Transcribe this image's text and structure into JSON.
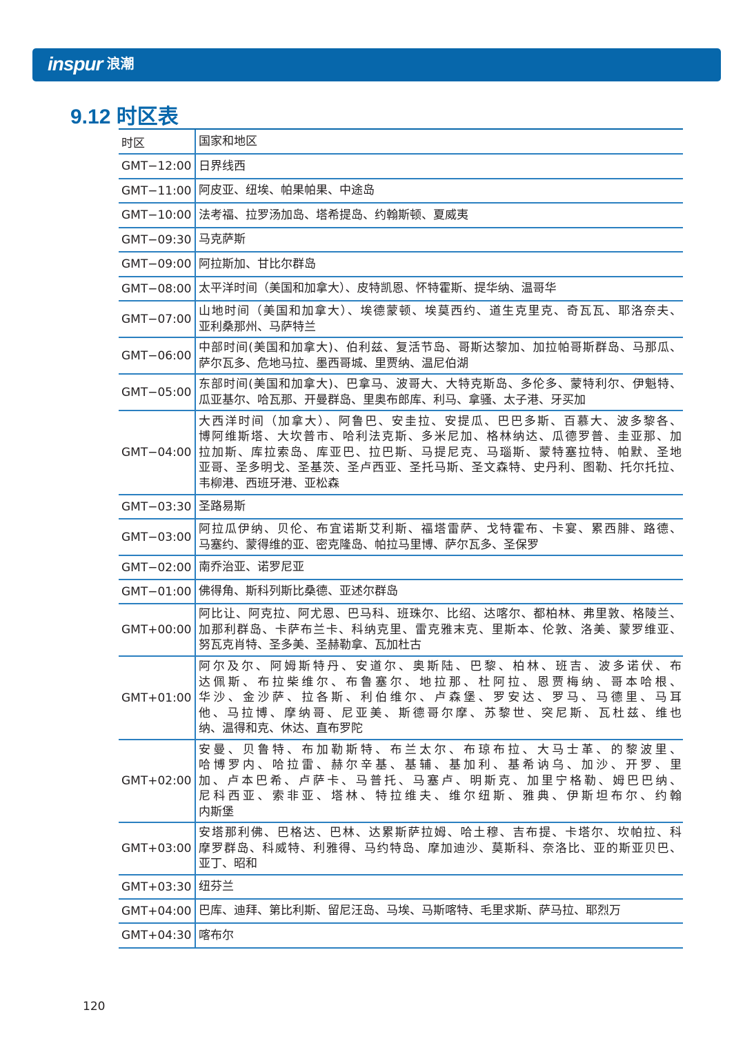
{
  "header": {
    "logo_text": "inspur",
    "logo_cn": "浪潮",
    "brand_color": "#0767ab"
  },
  "section_title": "9.12 时区表",
  "table": {
    "headers": [
      "时区",
      "国家和地区"
    ],
    "rows": [
      {
        "tz": "GMT−12:00",
        "lines": [
          "日界线西"
        ]
      },
      {
        "tz": "GMT−11:00",
        "lines": [
          "阿皮亚、纽埃、帕果帕果、中途岛"
        ]
      },
      {
        "tz": "GMT−10:00",
        "lines": [
          "法考福、拉罗汤加岛、塔希提岛、约翰斯顿、夏威夷"
        ]
      },
      {
        "tz": "GMT−09:30",
        "lines": [
          "马克萨斯"
        ]
      },
      {
        "tz": "GMT−09:00",
        "lines": [
          "阿拉斯加、甘比尔群岛"
        ]
      },
      {
        "tz": "GMT−08:00",
        "lines": [
          "太平洋时间（美国和加拿大）、皮特凯恩、怀特霍斯、提华纳、温哥华"
        ]
      },
      {
        "tz": "GMT−07:00",
        "lines": [
          "山地时间（美国和加拿大）、埃德蒙顿、埃莫西约、道生克里克、奇瓦瓦、耶洛奈夫、",
          "亚利桑那州、马萨特兰"
        ]
      },
      {
        "tz": "GMT−06:00",
        "lines": [
          "中部时间(美国和加拿大)、伯利兹、复活节岛、哥斯达黎加、加拉帕哥斯群岛、马那瓜、",
          "萨尔瓦多、危地马拉、墨西哥城、里贾纳、温尼伯湖"
        ]
      },
      {
        "tz": "GMT−05:00",
        "lines": [
          "东部时间(美国和加拿大)、巴拿马、波哥大、大特克斯岛、多伦多、蒙特利尔、伊魁特、",
          "瓜亚基尔、哈瓦那、开曼群岛、里奥布郎库、利马、拿骚、太子港、牙买加"
        ]
      },
      {
        "tz": "GMT−04:00",
        "lines": [
          "大西洋时间（加拿大）、阿鲁巴、安圭拉、安提瓜、巴巴多斯、百慕大、波多黎各、",
          "博阿维斯塔、大坎普市、哈利法克斯、多米尼加、格林纳达、瓜德罗普、圭亚那、加",
          "拉加斯、库拉索岛、库亚巴、拉巴斯、马提尼克、马瑙斯、蒙特塞拉特、帕默、圣地",
          "亚哥、圣多明戈、圣基茨、圣卢西亚、圣托马斯、圣文森特、史丹利、图勒、托尔托拉、",
          "韦柳港、西班牙港、亚松森"
        ]
      },
      {
        "tz": "GMT−03:30",
        "lines": [
          "圣路易斯"
        ]
      },
      {
        "tz": "GMT−03:00",
        "lines": [
          "阿拉瓜伊纳、贝伦、布宜诺斯艾利斯、福塔雷萨、戈特霍布、卡宴、累西腓、路德、",
          "马塞约、蒙得维的亚、密克隆岛、帕拉马里博、萨尔瓦多、圣保罗"
        ]
      },
      {
        "tz": "GMT−02:00",
        "lines": [
          "南乔治亚、诺罗尼亚"
        ]
      },
      {
        "tz": "GMT−01:00",
        "lines": [
          "佛得角、斯科列斯比桑德、亚述尔群岛"
        ]
      },
      {
        "tz": "GMT+00:00",
        "lines": [
          "阿比让、阿克拉、阿尤恩、巴马科、班珠尔、比绍、达喀尔、都柏林、弗里敦、格陵兰、",
          "加那利群岛、卡萨布兰卡、科纳克里、雷克雅末克、里斯本、伦敦、洛美、蒙罗维亚、",
          "努瓦克肖特、圣多美、圣赫勒拿、瓦加杜古"
        ]
      },
      {
        "tz": "GMT+01:00",
        "lines": [
          "阿尔及尔、阿姆斯特丹、安道尔、奥斯陆、巴黎、柏林、班吉、波多诺伏、布",
          "达佩斯、布拉柴维尔、布鲁塞尔、地拉那、杜阿拉、恩贾梅纳、哥本哈根、",
          "华沙、金沙萨、拉各斯、利伯维尔、卢森堡、罗安达、罗马、马德里、马耳",
          "他、马拉博、摩纳哥、尼亚美、斯德哥尔摩、苏黎世、突尼斯、瓦杜兹、维也",
          "纳、温得和克、休达、直布罗陀"
        ]
      },
      {
        "tz": "GMT+02:00",
        "lines": [
          "安曼、贝鲁特、布加勒斯特、布兰太尔、布琼布拉、大马士革、的黎波里、",
          "哈博罗内、哈拉雷、赫尔辛基、基辅、基加利、基希讷乌、加沙、开罗、里",
          "加、卢本巴希、卢萨卡、马普托、马塞卢、明斯克、加里宁格勒、姆巴巴纳、",
          "尼科西亚、索非亚、塔林、特拉维夫、维尔纽斯、雅典、伊斯坦布尔、约翰",
          "内斯堡"
        ]
      },
      {
        "tz": "GMT+03:00",
        "lines": [
          "安塔那利佛、巴格达、巴林、达累斯萨拉姆、哈土穆、吉布提、卡塔尔、坎帕拉、科",
          "摩罗群岛、科威特、利雅得、马约特岛、摩加迪沙、莫斯科、奈洛比、亚的斯亚贝巴、",
          "亚丁、昭和"
        ]
      },
      {
        "tz": "GMT+03:30",
        "lines": [
          "纽芬兰"
        ]
      },
      {
        "tz": "GMT+04:00",
        "lines": [
          "巴库、迪拜、第比利斯、留尼汪岛、马埃、马斯喀特、毛里求斯、萨马拉、耶烈万"
        ]
      },
      {
        "tz": "GMT+04:30",
        "lines": [
          "喀布尔"
        ]
      }
    ]
  },
  "page_number": "120"
}
